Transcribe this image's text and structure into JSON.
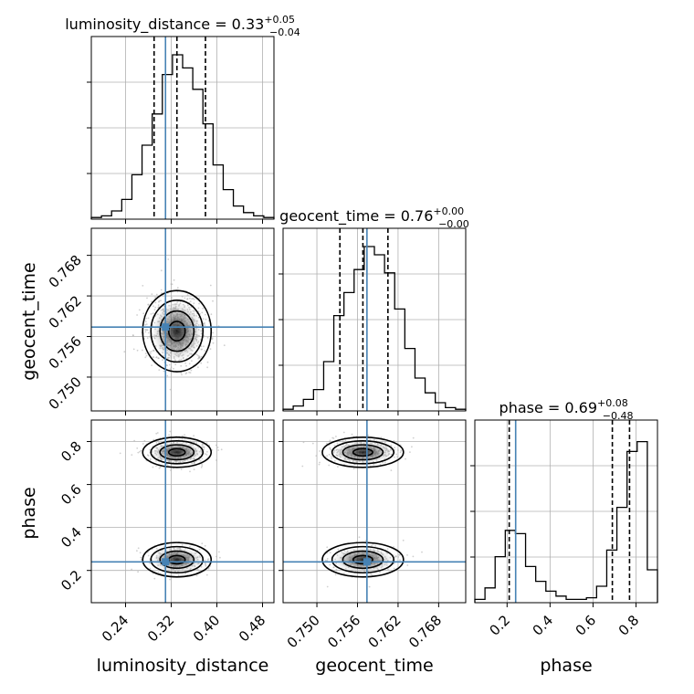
{
  "chart_data": {
    "type": "corner",
    "parameters": [
      {
        "name": "luminosity_distance",
        "range": [
          0.18,
          0.5
        ],
        "ticks": [
          "0.24",
          "0.32",
          "0.40",
          "0.48"
        ],
        "tick_values": [
          0.24,
          0.32,
          0.4,
          0.48
        ],
        "median": 0.33,
        "q_low": 0.29,
        "q_high": 0.38,
        "injection": 0.31,
        "title_main": "luminosity_distance = 0.33",
        "title_plus": "+0.05",
        "title_minus": "−0.04",
        "hist": [
          1,
          2,
          5,
          12,
          27,
          45,
          64,
          88,
          100,
          92,
          79,
          58,
          33,
          18,
          8,
          4,
          2,
          1
        ]
      },
      {
        "name": "geocent_time",
        "range": [
          0.745,
          0.772
        ],
        "ticks": [
          "0.750",
          "0.756",
          "0.762",
          "0.768"
        ],
        "tick_values": [
          0.75,
          0.756,
          0.762,
          0.768
        ],
        "median": 0.7568,
        "q_low": 0.7534,
        "q_high": 0.7605,
        "injection": 0.7574,
        "title_main": "geocent_time = 0.76",
        "title_plus": "+0.00",
        "title_minus": "−0.00",
        "hist": [
          1,
          3,
          7,
          13,
          30,
          58,
          72,
          86,
          100,
          95,
          84,
          62,
          38,
          20,
          11,
          5,
          2,
          1
        ],
        "ytick_labels": [
          "0.768",
          "0.762",
          "0.756",
          "0.750"
        ]
      },
      {
        "name": "phase",
        "range": [
          0.05,
          0.9
        ],
        "ticks": [
          "0.2",
          "0.4",
          "0.6",
          "0.8"
        ],
        "tick_values": [
          0.2,
          0.4,
          0.6,
          0.8
        ],
        "median": 0.69,
        "q_low": 0.21,
        "q_high": 0.77,
        "injection": 0.24,
        "title_main": "phase = 0.69",
        "title_plus": "+0.08",
        "title_minus": "−0.48",
        "hist": [
          2,
          9,
          28,
          44,
          42,
          22,
          13,
          7,
          4,
          2,
          2,
          3,
          10,
          32,
          58,
          92,
          98,
          20
        ],
        "ytick_labels": [
          "0.8",
          "0.6",
          "0.4",
          "0.2"
        ]
      }
    ],
    "grid": true,
    "colors": {
      "truth": "#4682b4",
      "contour": "#000000",
      "scatter": "#b0b0b0",
      "grid": "#b0b0b0"
    }
  }
}
